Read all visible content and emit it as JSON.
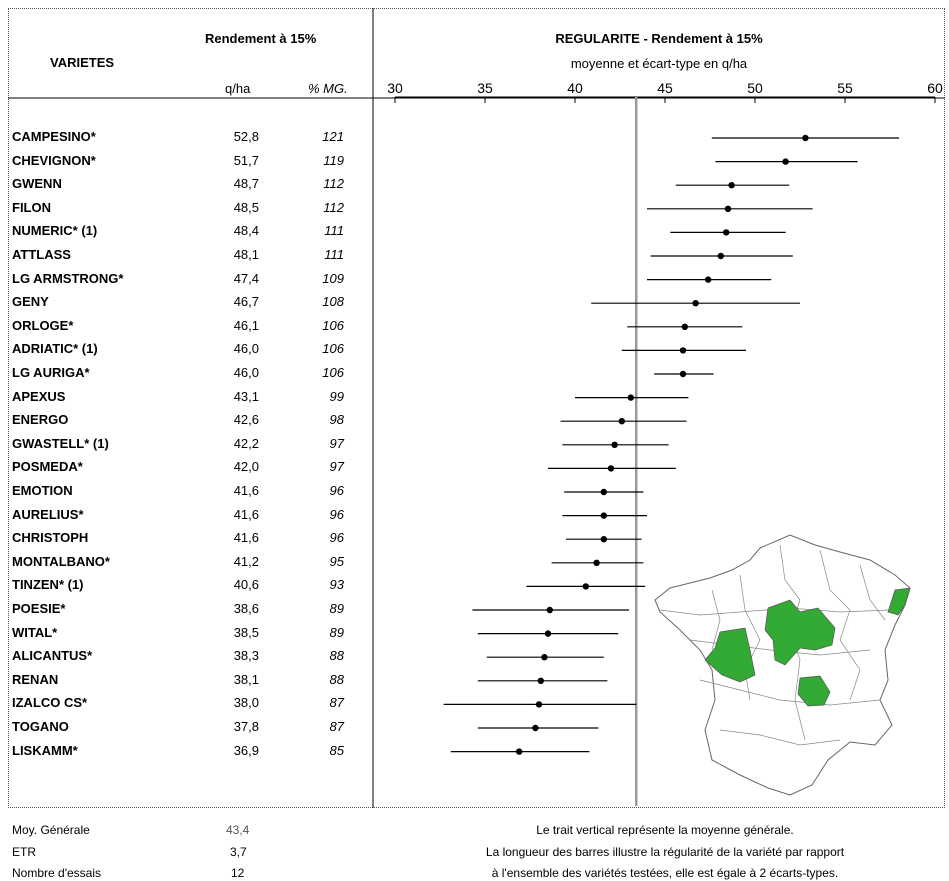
{
  "table": {
    "col_variete": "VARIETES",
    "col_rendement": "Rendement à 15%",
    "unit_qha": "q/ha",
    "unit_pct": "% MG.",
    "rows": [
      {
        "name": "CAMPESINO*",
        "value": "52,8",
        "pct": "121"
      },
      {
        "name": "CHEVIGNON*",
        "value": "51,7",
        "pct": "119"
      },
      {
        "name": "GWENN",
        "value": "48,7",
        "pct": "112"
      },
      {
        "name": "FILON",
        "value": "48,5",
        "pct": "112"
      },
      {
        "name": "NUMERIC* (1)",
        "value": "48,4",
        "pct": "111"
      },
      {
        "name": "ATTLASS",
        "value": "48,1",
        "pct": "111"
      },
      {
        "name": "LG ARMSTRONG*",
        "value": "47,4",
        "pct": "109"
      },
      {
        "name": "GENY",
        "value": "46,7",
        "pct": "108"
      },
      {
        "name": "ORLOGE*",
        "value": "46,1",
        "pct": "106"
      },
      {
        "name": "ADRIATIC* (1)",
        "value": "46,0",
        "pct": "106"
      },
      {
        "name": "LG AURIGA*",
        "value": "46,0",
        "pct": "106"
      },
      {
        "name": "APEXUS",
        "value": "43,1",
        "pct": "99"
      },
      {
        "name": "ENERGO",
        "value": "42,6",
        "pct": "98"
      },
      {
        "name": "GWASTELL* (1)",
        "value": "42,2",
        "pct": "97"
      },
      {
        "name": "POSMEDA*",
        "value": "42,0",
        "pct": "97"
      },
      {
        "name": "EMOTION",
        "value": "41,6",
        "pct": "96"
      },
      {
        "name": "AURELIUS*",
        "value": "41,6",
        "pct": "96"
      },
      {
        "name": "CHRISTOPH",
        "value": "41,6",
        "pct": "96"
      },
      {
        "name": "MONTALBANO*",
        "value": "41,2",
        "pct": "95"
      },
      {
        "name": "TINZEN* (1)",
        "value": "40,6",
        "pct": "93"
      },
      {
        "name": "POESIE*",
        "value": "38,6",
        "pct": "89"
      },
      {
        "name": "WITAL*",
        "value": "38,5",
        "pct": "89"
      },
      {
        "name": "ALICANTUS*",
        "value": "38,3",
        "pct": "88"
      },
      {
        "name": "RENAN",
        "value": "38,1",
        "pct": "88"
      },
      {
        "name": "IZALCO CS*",
        "value": "38,0",
        "pct": "87"
      },
      {
        "name": "TOGANO",
        "value": "37,8",
        "pct": "87"
      },
      {
        "name": "LISKAMM*",
        "value": "36,9",
        "pct": "85"
      }
    ]
  },
  "footer": {
    "moy_label": "Moy. Générale",
    "moy_value": "43,4",
    "etr_label": "ETR",
    "etr_value": "3,7",
    "essais_label": "Nombre d'essais",
    "essais_value": "12",
    "note_line1": "Le trait vertical représente la moyenne générale.",
    "note_line2": "La longueur des barres illustre la régularité de la variété par rapport",
    "note_line3": "à l'ensemble des variétés testées, elle est égale à 2 écarts-types."
  },
  "chart_data": {
    "type": "scatter",
    "title": "REGULARITE - Rendement à 15%",
    "subtitle": "moyenne et écart-type en q/ha",
    "xlim": [
      30,
      60
    ],
    "xticks": [
      30,
      35,
      40,
      45,
      50,
      55,
      60
    ],
    "mean_line": 43.4,
    "colors": {
      "mean_line": "#999999",
      "bars": "#000000",
      "map_highlight": "#33aa33"
    },
    "points": [
      {
        "name": "CAMPESINO*",
        "mean": 52.8,
        "low": 47.6,
        "high": 58.0
      },
      {
        "name": "CHEVIGNON*",
        "mean": 51.7,
        "low": 47.8,
        "high": 55.7
      },
      {
        "name": "GWENN",
        "mean": 48.7,
        "low": 45.6,
        "high": 51.9
      },
      {
        "name": "FILON",
        "mean": 48.5,
        "low": 44.0,
        "high": 53.2
      },
      {
        "name": "NUMERIC* (1)",
        "mean": 48.4,
        "low": 45.3,
        "high": 51.7
      },
      {
        "name": "ATTLASS",
        "mean": 48.1,
        "low": 44.2,
        "high": 52.1
      },
      {
        "name": "LG ARMSTRONG*",
        "mean": 47.4,
        "low": 44.0,
        "high": 50.9
      },
      {
        "name": "GENY",
        "mean": 46.7,
        "low": 40.9,
        "high": 52.5
      },
      {
        "name": "ORLOGE*",
        "mean": 46.1,
        "low": 42.9,
        "high": 49.3
      },
      {
        "name": "ADRIATIC* (1)",
        "mean": 46.0,
        "low": 42.6,
        "high": 49.5
      },
      {
        "name": "LG AURIGA*",
        "mean": 46.0,
        "low": 44.4,
        "high": 47.7
      },
      {
        "name": "APEXUS",
        "mean": 43.1,
        "low": 40.0,
        "high": 46.3
      },
      {
        "name": "ENERGO",
        "mean": 42.6,
        "low": 39.2,
        "high": 46.2
      },
      {
        "name": "GWASTELL* (1)",
        "mean": 42.2,
        "low": 39.3,
        "high": 45.2
      },
      {
        "name": "POSMEDA*",
        "mean": 42.0,
        "low": 38.5,
        "high": 45.6
      },
      {
        "name": "EMOTION",
        "mean": 41.6,
        "low": 39.4,
        "high": 43.8
      },
      {
        "name": "AURELIUS*",
        "mean": 41.6,
        "low": 39.3,
        "high": 44.0
      },
      {
        "name": "CHRISTOPH",
        "mean": 41.6,
        "low": 39.5,
        "high": 43.7
      },
      {
        "name": "MONTALBANO*",
        "mean": 41.2,
        "low": 38.7,
        "high": 43.8
      },
      {
        "name": "TINZEN* (1)",
        "mean": 40.6,
        "low": 37.3,
        "high": 43.9
      },
      {
        "name": "POESIE*",
        "mean": 38.6,
        "low": 34.3,
        "high": 43.0
      },
      {
        "name": "WITAL*",
        "mean": 38.5,
        "low": 34.6,
        "high": 42.4
      },
      {
        "name": "ALICANTUS*",
        "mean": 38.3,
        "low": 35.1,
        "high": 41.6
      },
      {
        "name": "RENAN",
        "mean": 38.1,
        "low": 34.6,
        "high": 41.8
      },
      {
        "name": "IZALCO CS*",
        "mean": 38.0,
        "low": 32.7,
        "high": 43.4
      },
      {
        "name": "TOGANO",
        "mean": 37.8,
        "low": 34.6,
        "high": 41.3
      },
      {
        "name": "LISKAMM*",
        "mean": 36.9,
        "low": 33.1,
        "high": 40.8
      }
    ]
  }
}
